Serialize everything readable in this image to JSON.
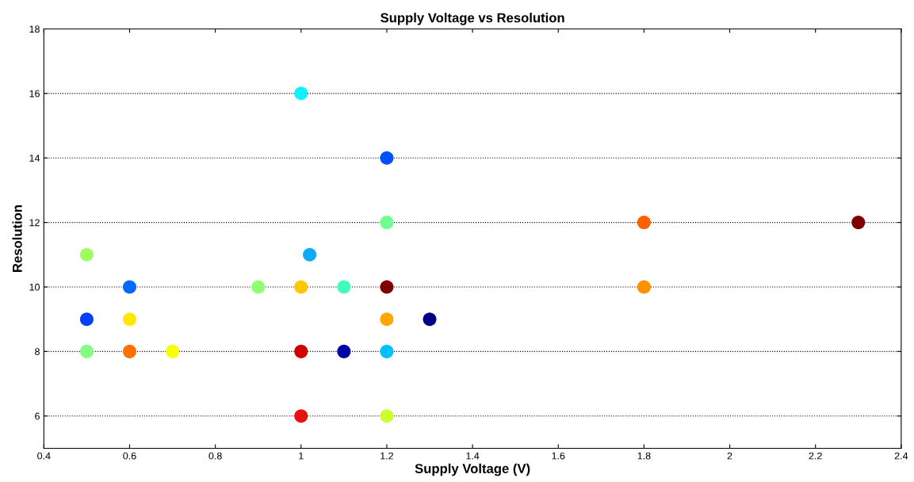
{
  "chart_data": {
    "type": "scatter",
    "title": "Supply Voltage vs Resolution",
    "xlabel": "Supply Voltage (V)",
    "ylabel": "Resolution",
    "x": [
      1,
      1.2,
      1.2,
      1.8,
      2.3,
      0.5,
      1.02,
      0.6,
      0.9,
      1,
      1.1,
      1.2,
      1.8,
      0.5,
      0.6,
      1.2,
      1.3,
      0.5,
      0.6,
      0.7,
      1,
      1.1,
      1.2,
      1,
      1.2
    ],
    "values": [
      16,
      14,
      12,
      12,
      12,
      11,
      11,
      10,
      10,
      10,
      10,
      10,
      10,
      9,
      9,
      9,
      9,
      8,
      8,
      8,
      8,
      8,
      8,
      6,
      6
    ],
    "colors": [
      "#10f0ff",
      "#0050ff",
      "#70ff90",
      "#ff6000",
      "#800000",
      "#a0ff60",
      "#10a8ff",
      "#0068ff",
      "#90ff70",
      "#ffc800",
      "#40ffb8",
      "#800000",
      "#ff9000",
      "#0040ff",
      "#ffe800",
      "#ffa800",
      "#000088",
      "#80ff80",
      "#ff7000",
      "#f8ff00",
      "#d00000",
      "#0000a8",
      "#00c0ff",
      "#e81010",
      "#c8ff30"
    ],
    "marker": "circle",
    "grid": "y",
    "xlim": [
      0.4,
      2.4
    ],
    "xticks": [
      0.4,
      0.6,
      0.8,
      1,
      1.2,
      1.4,
      1.6,
      1.8,
      2,
      2.2,
      2.4
    ],
    "ylim": [
      5,
      18
    ],
    "yticks": [
      6,
      8,
      10,
      12,
      14,
      16,
      18
    ]
  }
}
